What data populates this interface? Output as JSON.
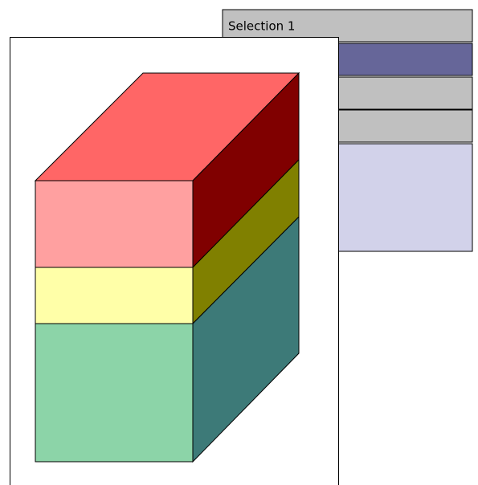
{
  "panel": {
    "title": "Selection 1"
  }
}
